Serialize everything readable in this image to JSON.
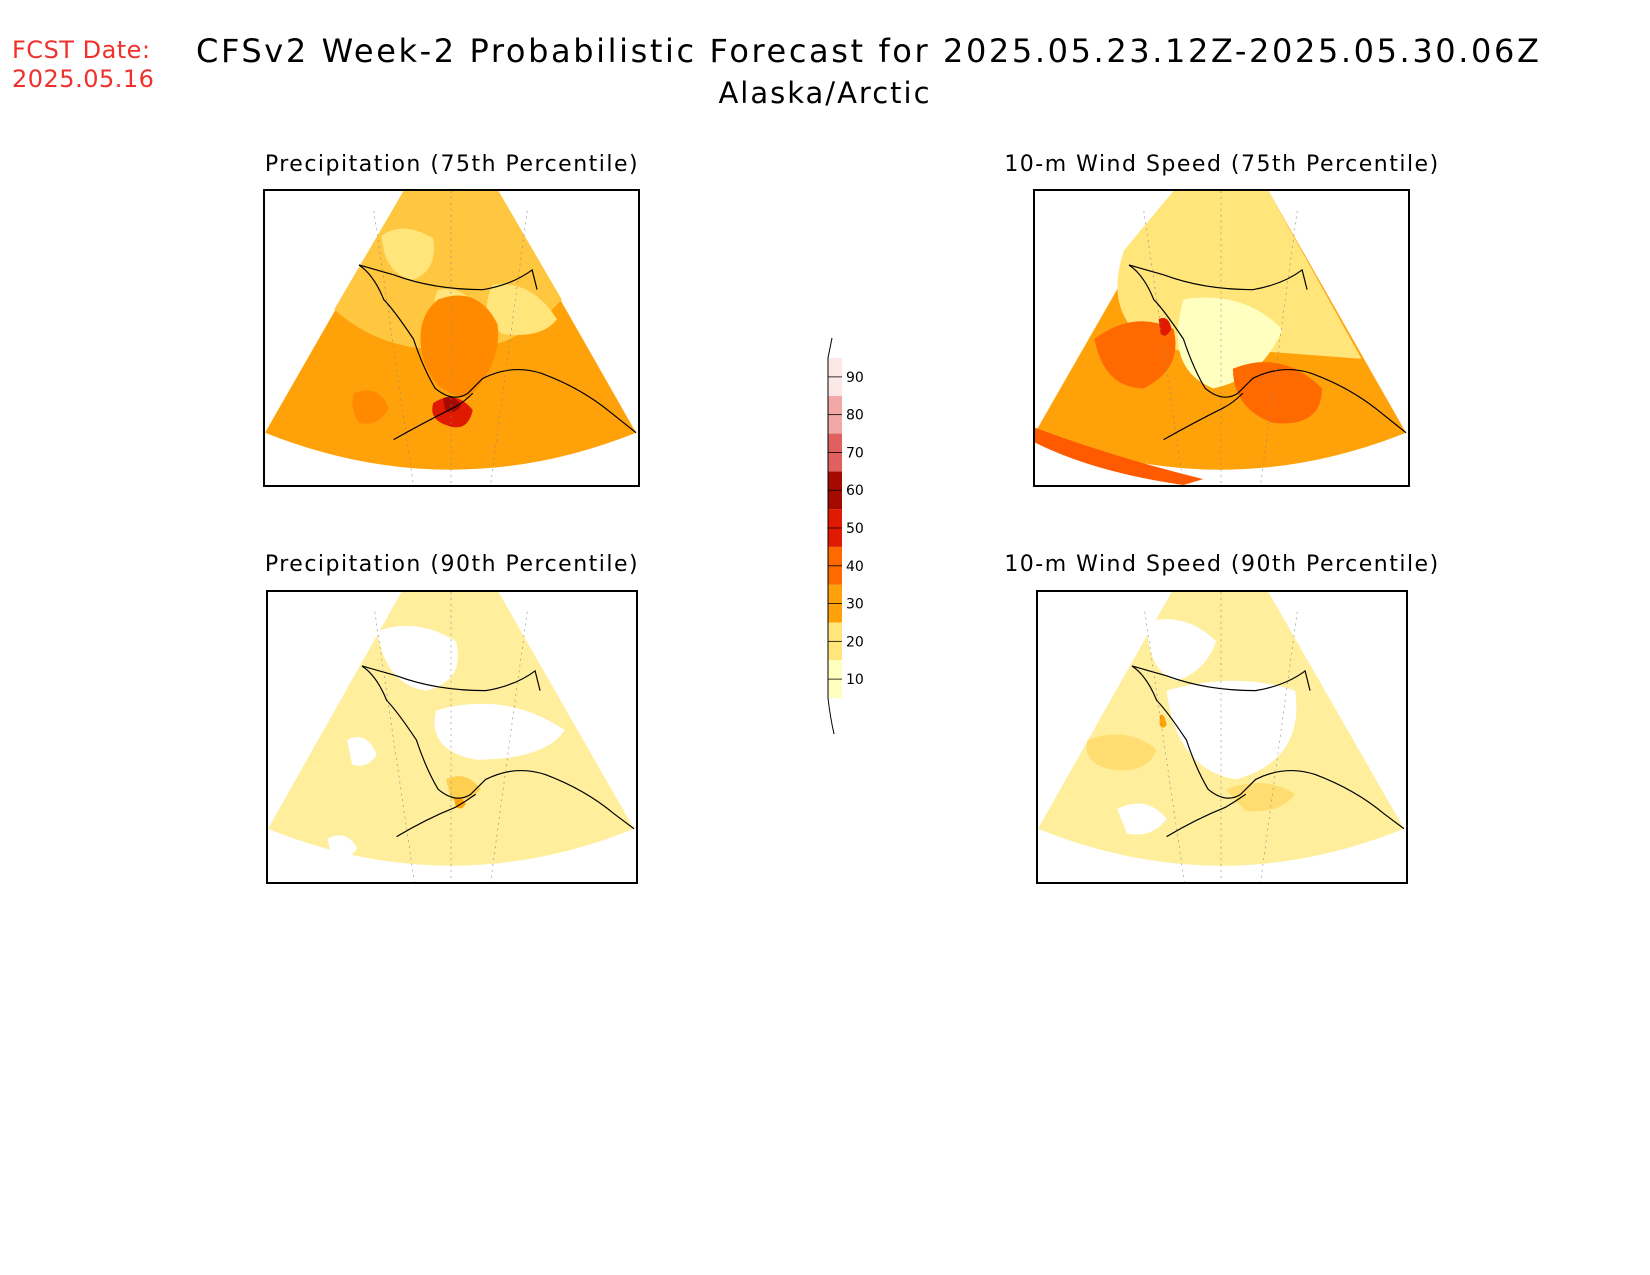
{
  "header": {
    "fcst_label": "FCST Date:",
    "fcst_date": "2025.05.16",
    "title": "CFSv2 Week-2 Probabilistic Forecast for 2025.05.23.12Z-2025.05.30.06Z",
    "subtitle": "Alaska/Arctic"
  },
  "panels": [
    {
      "title": "Precipitation (75th Percentile)",
      "base_level": 40
    },
    {
      "title": "10-m Wind Speed (75th Percentile)",
      "base_level": 30
    },
    {
      "title": "Precipitation (90th Percentile)",
      "base_level": 10
    },
    {
      "title": "10-m Wind Speed (90th Percentile)",
      "base_level": 10
    }
  ],
  "colorbar": {
    "levels": [
      "10",
      "20",
      "30",
      "40",
      "50",
      "60",
      "70",
      "80",
      "90"
    ],
    "colors": [
      "#ffffc0",
      "#ffe57a",
      "#ffa20a",
      "#ff6a00",
      "#e01a00",
      "#a50a00",
      "#e06060",
      "#f3a8a8",
      "#fde8e8"
    ]
  }
}
